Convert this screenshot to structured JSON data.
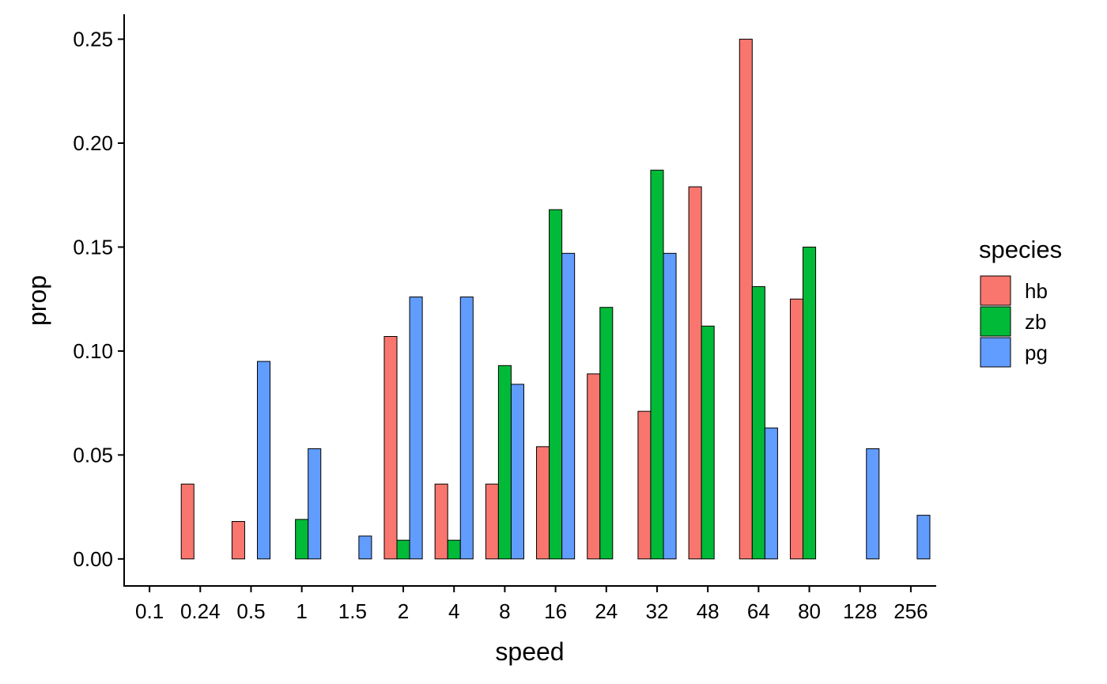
{
  "chart_data": {
    "type": "bar",
    "xlabel": "speed",
    "ylabel": "prop",
    "ylim": [
      -0.013,
      0.262
    ],
    "yticks": [
      "0.00",
      "0.05",
      "0.10",
      "0.15",
      "0.20",
      "0.25"
    ],
    "categories": [
      "0.1",
      "0.24",
      "0.5",
      "1",
      "1.5",
      "2",
      "4",
      "8",
      "16",
      "24",
      "32",
      "48",
      "64",
      "80",
      "128",
      "256"
    ],
    "legend": {
      "title": "species",
      "position": "right"
    },
    "grid": false,
    "series": [
      {
        "name": "hb",
        "color": "#F8766D",
        "values": [
          0,
          0.036,
          0.018,
          0,
          0,
          0.107,
          0.036,
          0.036,
          0.054,
          0.089,
          0.071,
          0.179,
          0.25,
          0.125,
          0,
          0
        ]
      },
      {
        "name": "zb",
        "color": "#00BA38",
        "values": [
          0,
          0,
          0,
          0.019,
          0,
          0.009,
          0.009,
          0.093,
          0.168,
          0.121,
          0.187,
          0.112,
          0.131,
          0.15,
          0,
          0
        ]
      },
      {
        "name": "pg",
        "color": "#619CFF",
        "values": [
          0,
          0,
          0.095,
          0.053,
          0.011,
          0.126,
          0.126,
          0.084,
          0.147,
          0,
          0.147,
          0,
          0.063,
          0,
          0.053,
          0.021
        ]
      }
    ]
  }
}
